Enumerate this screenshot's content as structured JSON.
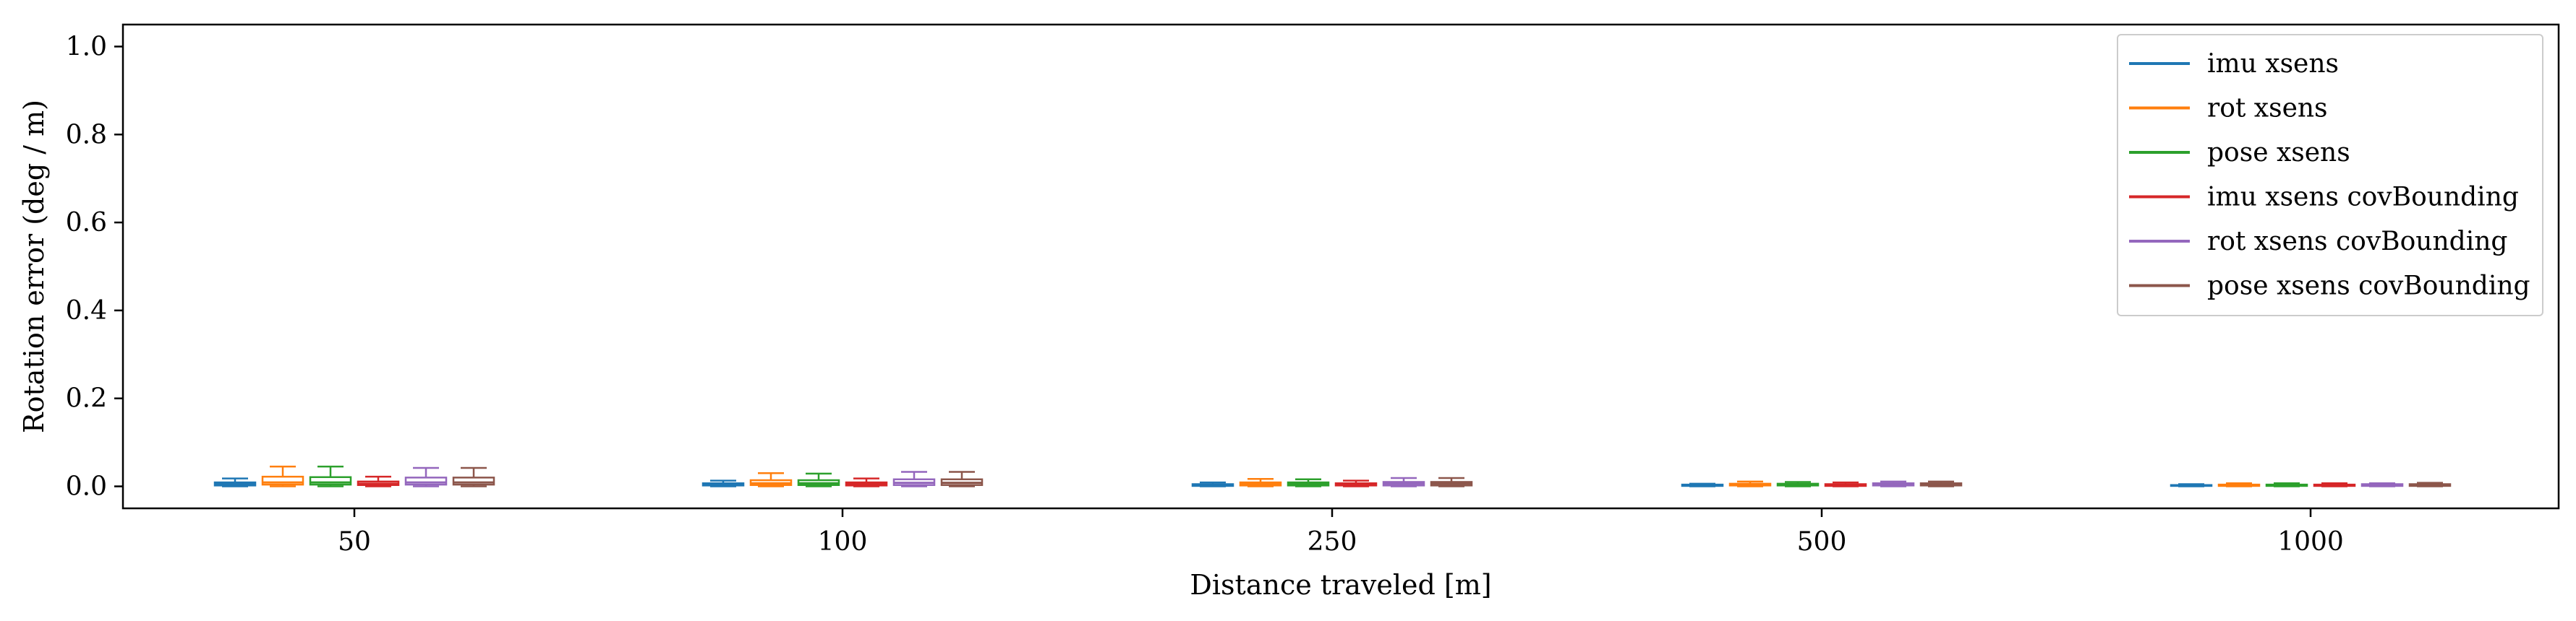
{
  "chart_data": {
    "type": "box",
    "title": "",
    "xlabel": "Distance traveled [m]",
    "ylabel": "Rotation error (deg / m)",
    "ylim": [
      -0.05,
      1.05
    ],
    "yticks": [
      "0.0",
      "0.2",
      "0.4",
      "0.6",
      "0.8",
      "1.0"
    ],
    "categories": [
      "50",
      "100",
      "250",
      "500",
      "1000"
    ],
    "grid": false,
    "legend_position": "top-right",
    "series": [
      {
        "name": "imu xsens",
        "color": "#1f77b4",
        "boxes": [
          {
            "whislo": 0.0,
            "q1": 0.002,
            "med": 0.005,
            "q3": 0.009,
            "whishi": 0.018
          },
          {
            "whislo": 0.0,
            "q1": 0.002,
            "med": 0.004,
            "q3": 0.007,
            "whishi": 0.013
          },
          {
            "whislo": 0.0,
            "q1": 0.001,
            "med": 0.003,
            "q3": 0.005,
            "whishi": 0.009
          },
          {
            "whislo": 0.0,
            "q1": 0.001,
            "med": 0.002,
            "q3": 0.004,
            "whishi": 0.006
          },
          {
            "whislo": 0.0,
            "q1": 0.001,
            "med": 0.002,
            "q3": 0.003,
            "whishi": 0.005
          }
        ]
      },
      {
        "name": "rot xsens",
        "color": "#ff7f0e",
        "boxes": [
          {
            "whislo": 0.0,
            "q1": 0.004,
            "med": 0.009,
            "q3": 0.022,
            "whishi": 0.045
          },
          {
            "whislo": 0.0,
            "q1": 0.003,
            "med": 0.007,
            "q3": 0.014,
            "whishi": 0.03
          },
          {
            "whislo": 0.0,
            "q1": 0.002,
            "med": 0.005,
            "q3": 0.009,
            "whishi": 0.017
          },
          {
            "whislo": 0.0,
            "q1": 0.002,
            "med": 0.004,
            "q3": 0.006,
            "whishi": 0.011
          },
          {
            "whislo": 0.0,
            "q1": 0.001,
            "med": 0.003,
            "q3": 0.004,
            "whishi": 0.007
          }
        ]
      },
      {
        "name": "pose xsens",
        "color": "#2ca02c",
        "boxes": [
          {
            "whislo": 0.0,
            "q1": 0.004,
            "med": 0.009,
            "q3": 0.021,
            "whishi": 0.045
          },
          {
            "whislo": 0.0,
            "q1": 0.003,
            "med": 0.007,
            "q3": 0.014,
            "whishi": 0.029
          },
          {
            "whislo": 0.0,
            "q1": 0.002,
            "med": 0.005,
            "q3": 0.009,
            "whishi": 0.016
          },
          {
            "whislo": 0.0,
            "q1": 0.002,
            "med": 0.004,
            "q3": 0.006,
            "whishi": 0.01
          },
          {
            "whislo": 0.0,
            "q1": 0.001,
            "med": 0.003,
            "q3": 0.004,
            "whishi": 0.007
          }
        ]
      },
      {
        "name": "imu xsens covBounding",
        "color": "#d62728",
        "boxes": [
          {
            "whislo": 0.0,
            "q1": 0.003,
            "med": 0.006,
            "q3": 0.011,
            "whishi": 0.022
          },
          {
            "whislo": 0.0,
            "q1": 0.002,
            "med": 0.005,
            "q3": 0.009,
            "whishi": 0.018
          },
          {
            "whislo": 0.0,
            "q1": 0.002,
            "med": 0.004,
            "q3": 0.007,
            "whishi": 0.013
          },
          {
            "whislo": 0.0,
            "q1": 0.001,
            "med": 0.003,
            "q3": 0.005,
            "whishi": 0.009
          },
          {
            "whislo": 0.0,
            "q1": 0.001,
            "med": 0.002,
            "q3": 0.004,
            "whishi": 0.007
          }
        ]
      },
      {
        "name": "rot xsens covBounding",
        "color": "#9467bd",
        "boxes": [
          {
            "whislo": 0.0,
            "q1": 0.004,
            "med": 0.009,
            "q3": 0.02,
            "whishi": 0.042
          },
          {
            "whislo": 0.0,
            "q1": 0.003,
            "med": 0.008,
            "q3": 0.016,
            "whishi": 0.033
          },
          {
            "whislo": 0.0,
            "q1": 0.002,
            "med": 0.006,
            "q3": 0.01,
            "whishi": 0.019
          },
          {
            "whislo": 0.0,
            "q1": 0.002,
            "med": 0.004,
            "q3": 0.007,
            "whishi": 0.011
          },
          {
            "whislo": 0.0,
            "q1": 0.001,
            "med": 0.003,
            "q3": 0.005,
            "whishi": 0.007
          }
        ]
      },
      {
        "name": "pose xsens covBounding",
        "color": "#8c564b",
        "boxes": [
          {
            "whislo": 0.0,
            "q1": 0.004,
            "med": 0.009,
            "q3": 0.02,
            "whishi": 0.042
          },
          {
            "whislo": 0.0,
            "q1": 0.003,
            "med": 0.008,
            "q3": 0.016,
            "whishi": 0.033
          },
          {
            "whislo": 0.0,
            "q1": 0.002,
            "med": 0.006,
            "q3": 0.01,
            "whishi": 0.019
          },
          {
            "whislo": 0.0,
            "q1": 0.002,
            "med": 0.004,
            "q3": 0.007,
            "whishi": 0.011
          },
          {
            "whislo": 0.0,
            "q1": 0.001,
            "med": 0.003,
            "q3": 0.005,
            "whishi": 0.008
          }
        ]
      }
    ]
  }
}
